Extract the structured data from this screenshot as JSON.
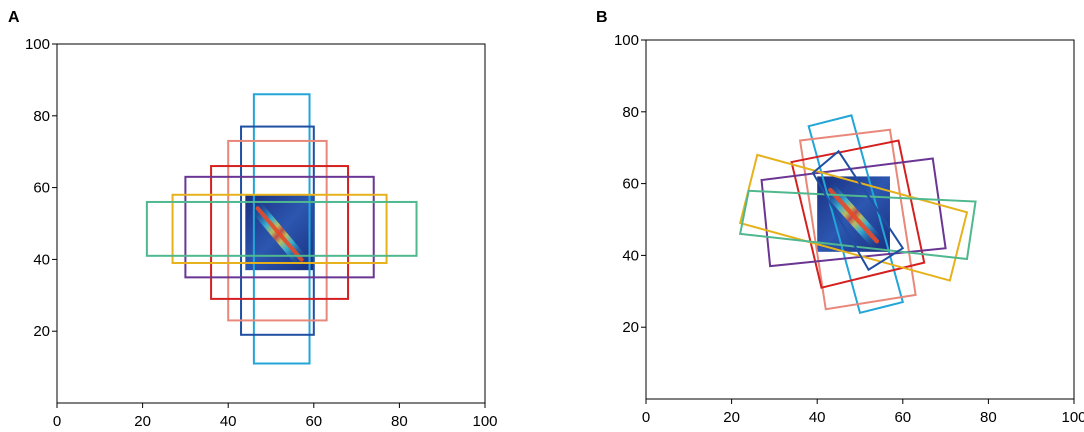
{
  "panels": [
    {
      "label": "A",
      "x_ticks": [
        "0",
        "20",
        "40",
        "60",
        "80",
        "100"
      ],
      "y_ticks": [
        "20",
        "40",
        "60",
        "80",
        "100"
      ],
      "xlim": [
        0,
        100
      ],
      "ylim": [
        0,
        100
      ],
      "heatmap": {
        "x": [
          44,
          60
        ],
        "y": [
          37,
          58
        ],
        "diagonal": "top-left to bottom-right"
      },
      "boxes": [
        {
          "color": "#22a6d8",
          "x": [
            46,
            59
          ],
          "y": [
            11,
            86
          ]
        },
        {
          "color": "#1f4fa3",
          "x": [
            43,
            60
          ],
          "y": [
            19,
            77
          ]
        },
        {
          "color": "#e8887a",
          "x": [
            40,
            63
          ],
          "y": [
            23,
            73
          ]
        },
        {
          "color": "#d42020",
          "x": [
            36,
            68
          ],
          "y": [
            29,
            66
          ]
        },
        {
          "color": "#6a3593",
          "x": [
            30,
            74
          ],
          "y": [
            35,
            63
          ]
        },
        {
          "color": "#e6b21c",
          "x": [
            27,
            77
          ],
          "y": [
            39,
            58
          ]
        },
        {
          "color": "#4fb88e",
          "x": [
            21,
            84
          ],
          "y": [
            41,
            56
          ]
        }
      ]
    },
    {
      "label": "B",
      "x_ticks": [
        "0",
        "20",
        "40",
        "60",
        "80",
        "100"
      ],
      "y_ticks": [
        "20",
        "40",
        "60",
        "80",
        "100"
      ],
      "xlim": [
        0,
        100
      ],
      "ylim": [
        0,
        100
      ],
      "heatmap": {
        "x": [
          40,
          57
        ],
        "y": [
          41,
          62
        ],
        "diagonal": "top-left to bottom-right"
      },
      "boxes": [
        {
          "color": "#22a6d8",
          "points": [
            [
              38,
              76
            ],
            [
              48,
              79
            ],
            [
              60,
              27
            ],
            [
              50,
              24
            ]
          ]
        },
        {
          "color": "#e8887a",
          "points": [
            [
              36,
              72
            ],
            [
              57,
              75
            ],
            [
              63,
              29
            ],
            [
              42,
              25
            ]
          ]
        },
        {
          "color": "#d42020",
          "points": [
            [
              34,
              66
            ],
            [
              59,
              72
            ],
            [
              65,
              38
            ],
            [
              41,
              31
            ]
          ]
        },
        {
          "color": "#6a3593",
          "points": [
            [
              27,
              61
            ],
            [
              67,
              67
            ],
            [
              70,
              42
            ],
            [
              29,
              37
            ]
          ]
        },
        {
          "color": "#e6b21c",
          "points": [
            [
              26,
              68
            ],
            [
              75,
              52
            ],
            [
              71,
              33
            ],
            [
              22,
              49
            ]
          ]
        },
        {
          "color": "#4fb88e",
          "points": [
            [
              24,
              58
            ],
            [
              77,
              55
            ],
            [
              75,
              39
            ],
            [
              22,
              46
            ]
          ]
        },
        {
          "color": "#1f4fa3",
          "points": [
            [
              39,
              63
            ],
            [
              45,
              69
            ],
            [
              60,
              42
            ],
            [
              52,
              36
            ]
          ]
        }
      ]
    }
  ]
}
